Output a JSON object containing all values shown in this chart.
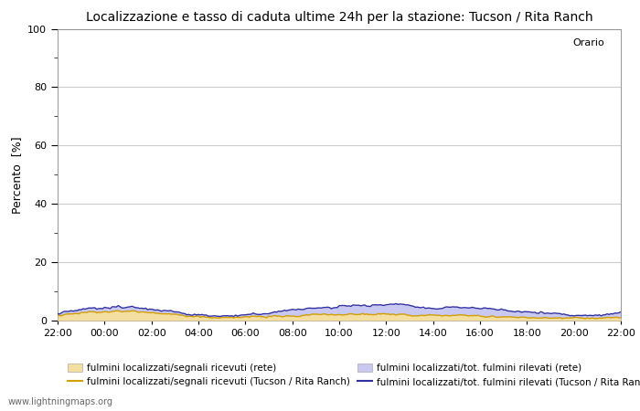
{
  "title": "Localizzazione e tasso di caduta ultime 24h per la stazione: Tucson / Rita Ranch",
  "xlabel": "Orario",
  "ylabel": "Percento  [%]",
  "ylim": [
    0,
    100
  ],
  "yticks_major": [
    0,
    20,
    40,
    60,
    80,
    100
  ],
  "yticks_minor": [
    10,
    30,
    50,
    70,
    90
  ],
  "xtick_labels": [
    "22:00",
    "00:00",
    "02:00",
    "04:00",
    "06:00",
    "08:00",
    "10:00",
    "12:00",
    "14:00",
    "16:00",
    "18:00",
    "20:00",
    "22:00"
  ],
  "num_points": 289,
  "bg_color": "#ffffff",
  "plot_bg_color": "#ffffff",
  "grid_color": "#cccccc",
  "fill_rete_loc_color": "#f5dfa0",
  "fill_rete_tot_color": "#c8c8f0",
  "line_station_loc_color": "#d4a000",
  "line_station_tot_color": "#3030a0",
  "legend_labels": [
    "fulmini localizzati/segnali ricevuti (rete)",
    "fulmini localizzati/segnali ricevuti (Tucson / Rita Ranch)",
    "fulmini localizzati/tot. fulmini rilevati (rete)",
    "fulmini localizzati/tot. fulmini rilevati (Tucson / Rita Ranch)"
  ],
  "watermark": "www.lightningmaps.org",
  "title_fontsize": 10,
  "axis_fontsize": 8,
  "ylabel_fontsize": 9
}
